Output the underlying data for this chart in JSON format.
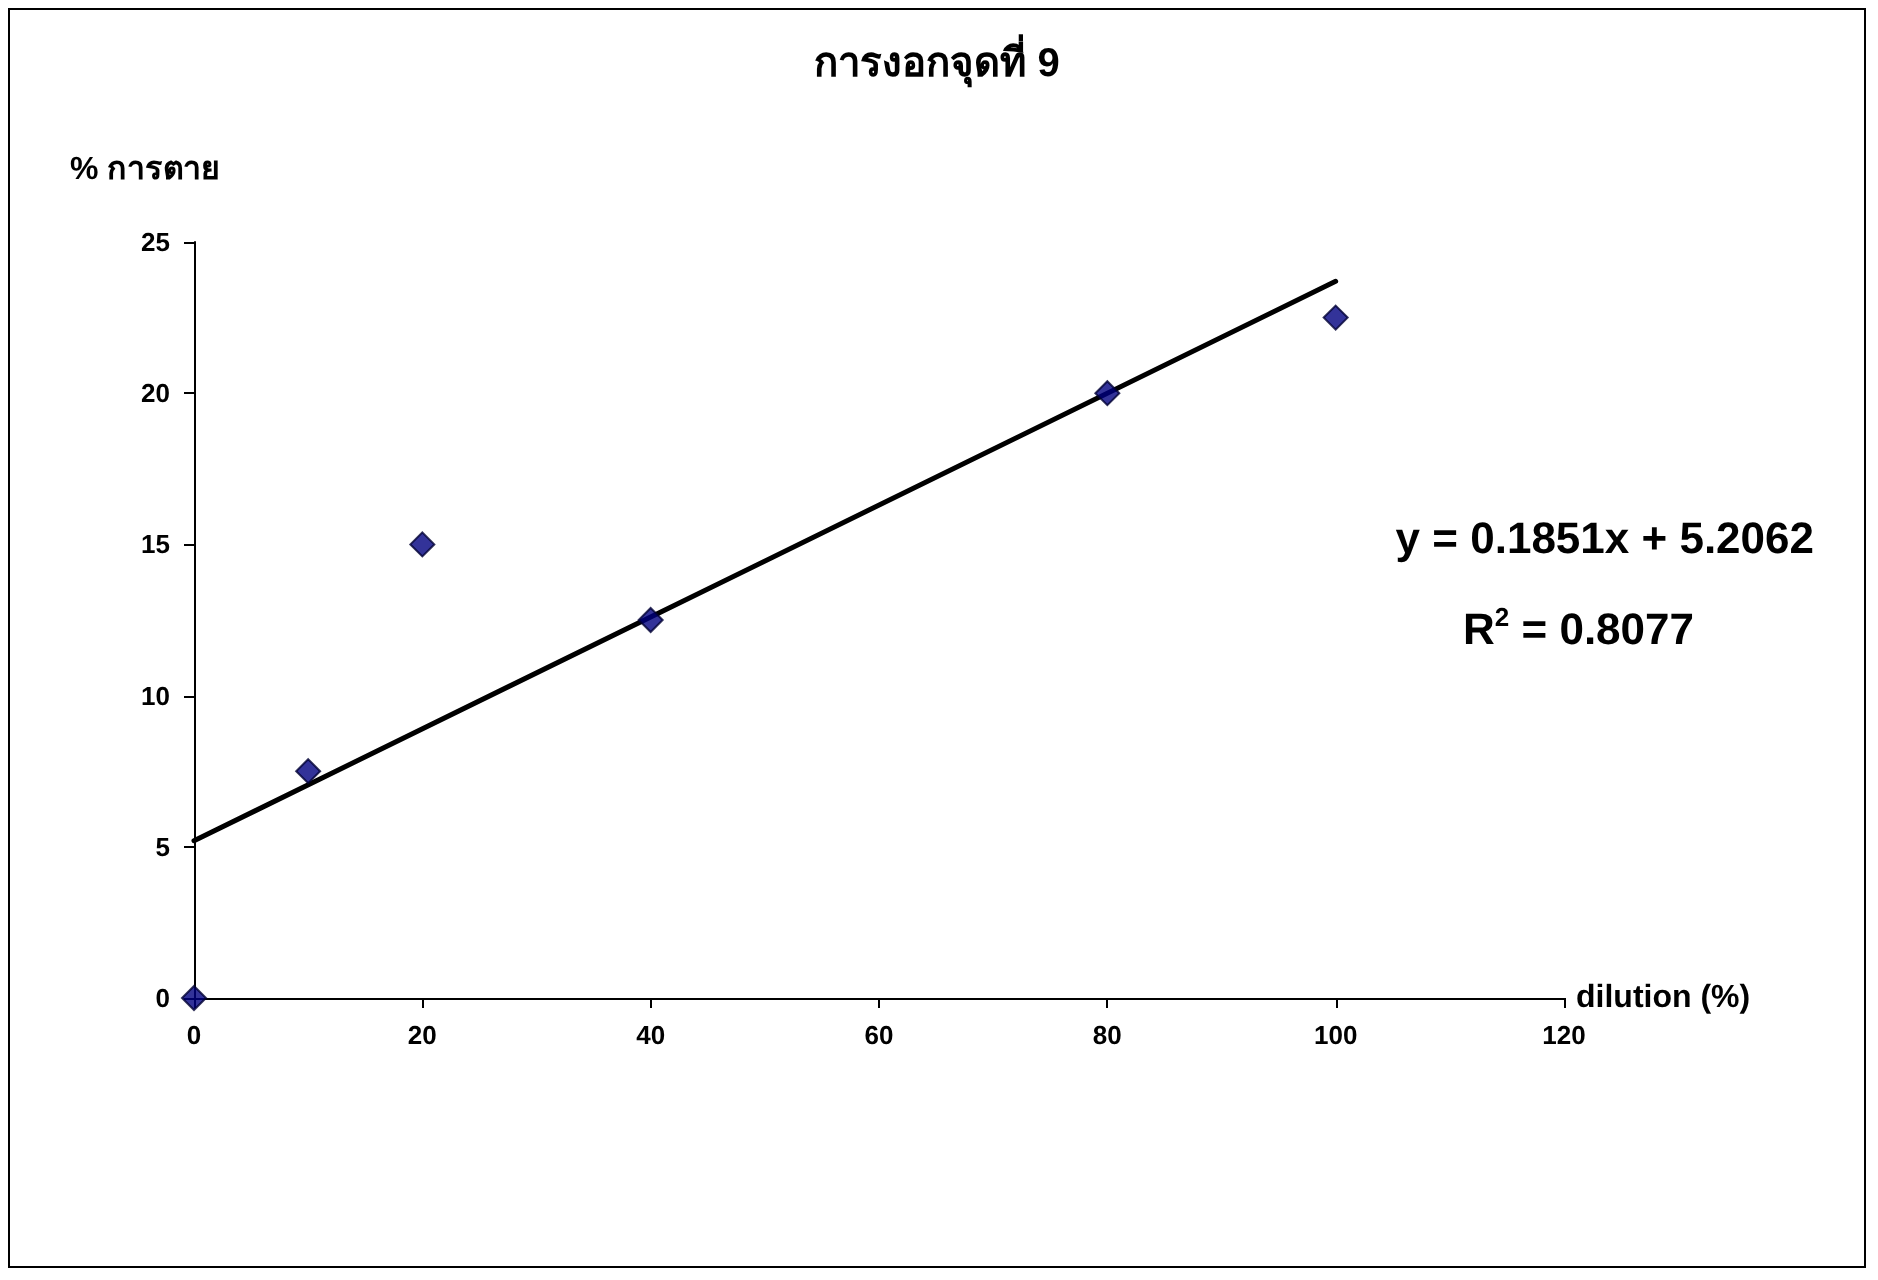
{
  "chart_data": {
    "type": "scatter",
    "title": "การงอกจุดที่ 9",
    "xlabel": "dilution (%)",
    "ylabel": "% การตาย",
    "series": [
      {
        "color": "#000080",
        "x": [
          0,
          10,
          20,
          40,
          80,
          100
        ],
        "values": [
          0,
          7.5,
          15,
          12.5,
          20,
          22.5
        ],
        "marker": "diamond"
      },
      {
        "type": "line",
        "color": "#000000",
        "x": [
          0,
          100
        ],
        "values": [
          5.2,
          23.7
        ],
        "marker": "none",
        "line_style": "solid"
      }
    ],
    "xlim": [
      0,
      120
    ],
    "xticks": [
      0,
      20,
      40,
      60,
      80,
      100,
      120
    ],
    "ylim": [
      0,
      25
    ],
    "yticks": [
      0,
      5,
      10,
      15,
      20,
      25
    ],
    "annotations": [
      "y = 0.1851x + 5.2062",
      "R$^{2}$ = 0.8077"
    ],
    "grid": false
  }
}
